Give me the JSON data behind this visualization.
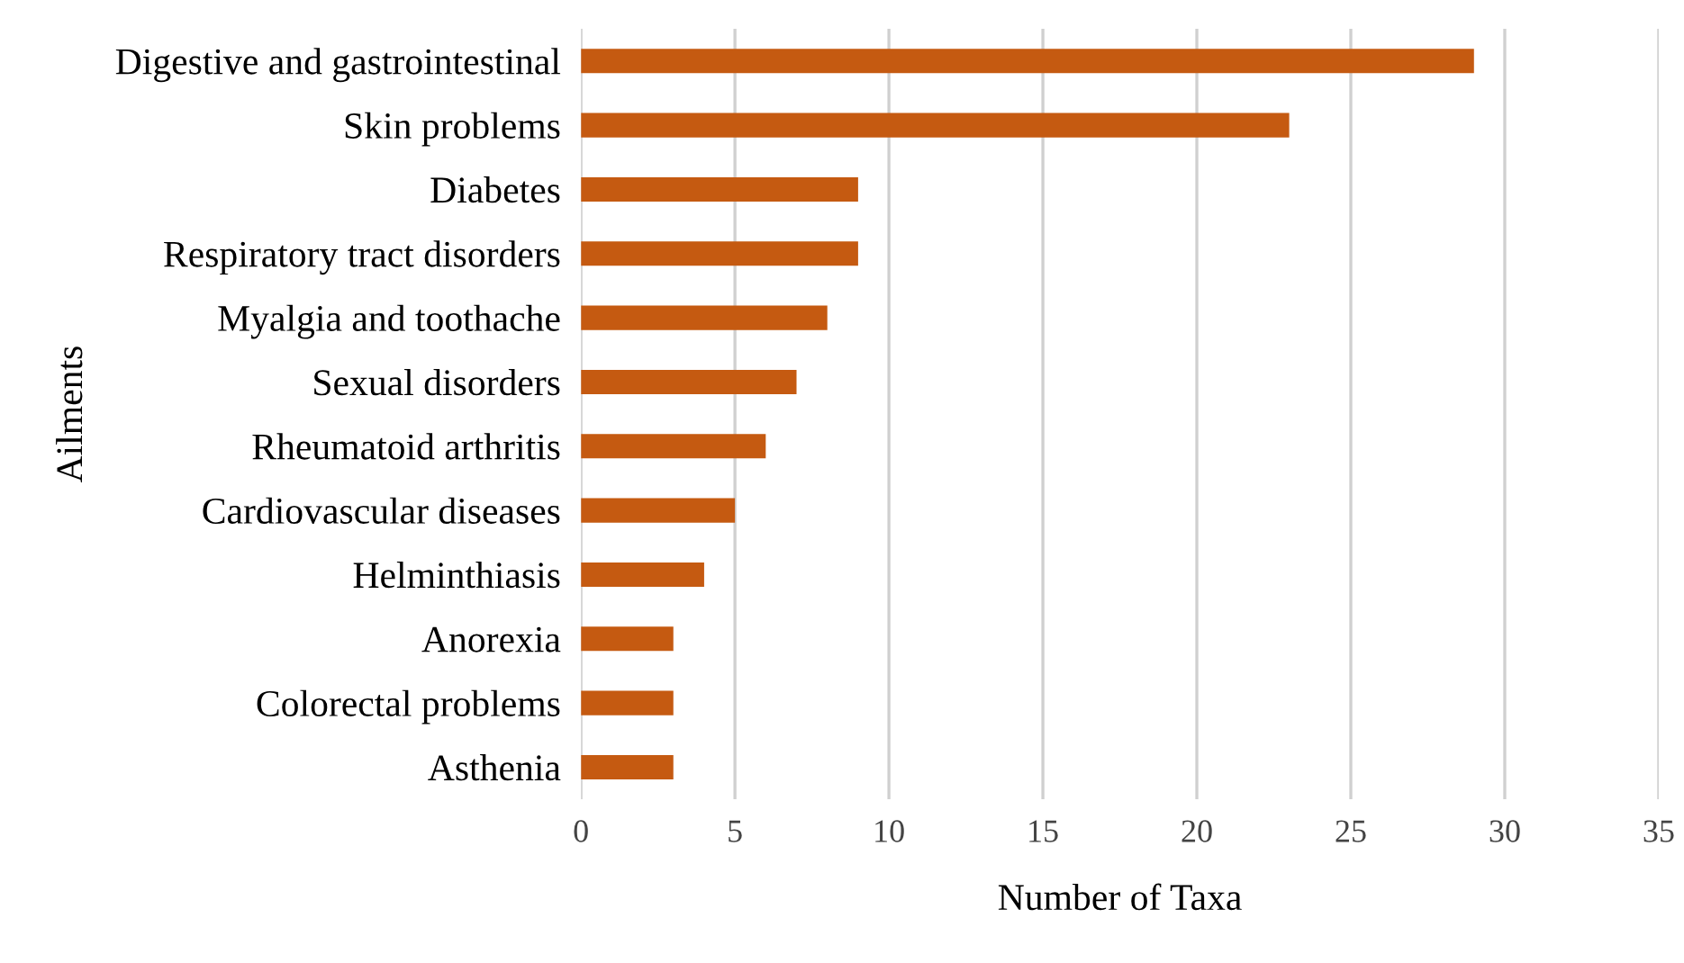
{
  "chart_data": {
    "type": "bar",
    "orientation": "horizontal",
    "xlabel": "Number of Taxa",
    "ylabel": "Ailments",
    "categories": [
      "Digestive and gastrointestinal",
      "Skin problems",
      "Diabetes",
      "Respiratory tract disorders",
      "Myalgia and toothache",
      "Sexual disorders",
      "Rheumatoid arthritis",
      "Cardiovascular diseases",
      "Helminthiasis",
      "Anorexia",
      "Colorectal problems",
      "Asthenia"
    ],
    "values": [
      29,
      23,
      9,
      9,
      8,
      7,
      6,
      5,
      4,
      3,
      3,
      3
    ],
    "color": "#c55a11",
    "xlim": [
      0,
      35
    ],
    "xticks": [
      0,
      5,
      10,
      15,
      20,
      25,
      30,
      35
    ],
    "grid": "x",
    "legend": false
  }
}
